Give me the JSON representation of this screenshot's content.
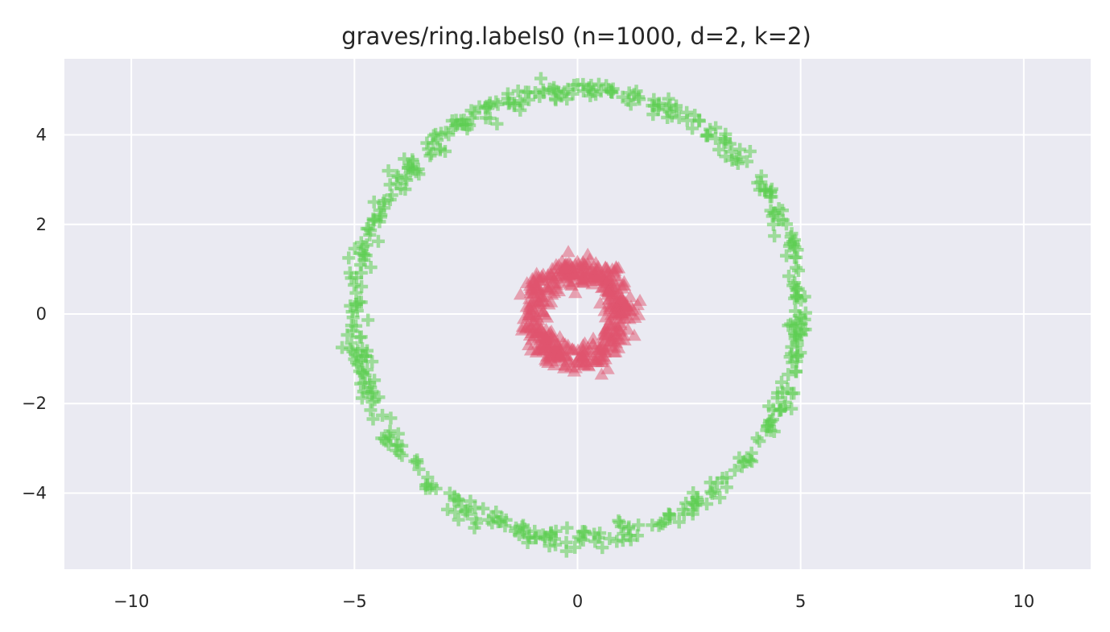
{
  "chart_data": {
    "type": "scatter",
    "title": "graves/ring.labels0 (n=1000, d=2, k=2)",
    "xlabel": "",
    "ylabel": "",
    "xlim": [
      -11.5,
      11.5
    ],
    "ylim": [
      -5.7,
      5.7
    ],
    "xticks": [
      -10,
      -5,
      0,
      5,
      10
    ],
    "xtick_labels": [
      "−10",
      "−5",
      "0",
      "5",
      "10"
    ],
    "yticks": [
      -4,
      -2,
      0,
      2,
      4
    ],
    "ytick_labels": [
      "−4",
      "−2",
      "0",
      "2",
      "4"
    ],
    "grid": true,
    "background": "#eaeaf2",
    "grid_color": "#ffffff",
    "series": [
      {
        "marker": "plus",
        "color": "#5dcd52",
        "count": 500,
        "shape": "ring",
        "center": [
          0,
          0
        ],
        "radius": 5.0,
        "radial_noise": 0.12
      },
      {
        "marker": "triangle",
        "color": "#e0536d",
        "count": 500,
        "shape": "ring",
        "center": [
          0,
          0
        ],
        "radius": 1.0,
        "radial_noise": 0.12
      }
    ]
  }
}
